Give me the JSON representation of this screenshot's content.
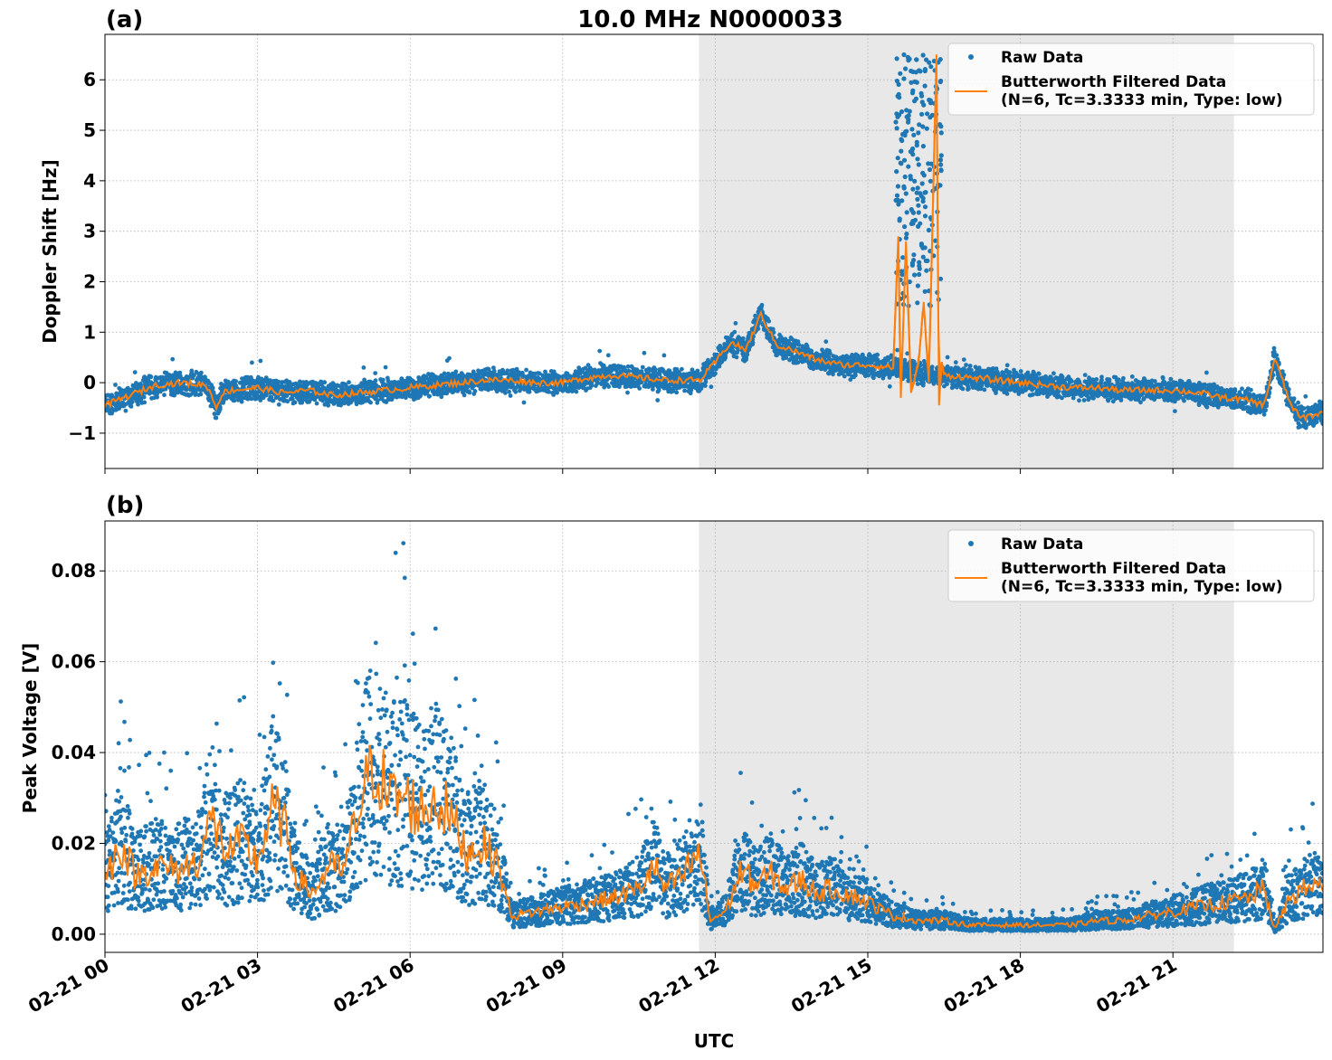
{
  "figure": {
    "title": "10.0 MHz N0000033",
    "xlabel": "UTC",
    "night_shading": {
      "start_hour": 11.68,
      "end_hour": 22.2,
      "color": "#e8e8e8"
    },
    "colors": {
      "raw": "#1f77b4",
      "filtered": "#ff7f0e"
    }
  },
  "chart_data": [
    {
      "type": "scatter",
      "panel_label": "(a)",
      "title": "10.0 MHz N0000033",
      "xlabel": "",
      "ylabel": "Doppler Shift [Hz]",
      "xlim": [
        0,
        23.95
      ],
      "ylim": [
        -1.7,
        6.9
      ],
      "x_unit": "hours UTC on 02-21",
      "xticks": [
        0,
        3,
        6,
        9,
        12,
        15,
        18,
        21
      ],
      "yticks": [
        -1,
        0,
        1,
        2,
        3,
        4,
        5,
        6
      ],
      "ytick_labels": [
        "−1",
        "0",
        "1",
        "2",
        "3",
        "4",
        "5",
        "6"
      ],
      "grid": true,
      "legend": {
        "placement": "top-right",
        "entries": [
          "Raw Data",
          "Butterworth Filtered Data",
          "(N=6, Tc=3.3333 min, Type: low)"
        ]
      },
      "series": [
        {
          "name": "Raw Data",
          "kind": "points",
          "band_halfwidth": 0.22,
          "x": [
            0,
            0.5,
            1,
            1.5,
            2,
            2.2,
            2.3,
            2.5,
            3,
            3.5,
            4,
            4.5,
            5,
            5.5,
            6,
            6.5,
            7,
            7.5,
            8,
            8.5,
            9,
            9.5,
            10,
            10.5,
            11,
            11.5,
            11.7,
            12,
            12.3,
            12.6,
            12.9,
            13.2,
            13.5,
            14,
            14.5,
            15,
            15.5,
            16,
            16.5,
            17,
            17.5,
            18,
            18.5,
            19,
            19.5,
            20,
            20.5,
            21,
            21.5,
            22,
            22.5,
            22.8,
            23,
            23.3,
            23.5,
            23.95
          ],
          "y": [
            -0.45,
            -0.25,
            -0.05,
            0.0,
            -0.05,
            -0.5,
            -0.2,
            -0.15,
            -0.1,
            -0.2,
            -0.15,
            -0.25,
            -0.2,
            -0.15,
            -0.1,
            -0.05,
            0.0,
            0.05,
            0.05,
            0.0,
            0.0,
            0.1,
            0.15,
            0.1,
            0.05,
            0.05,
            0.05,
            0.4,
            0.8,
            0.65,
            1.35,
            0.75,
            0.65,
            0.45,
            0.35,
            0.35,
            0.3,
            0.2,
            0.1,
            0.1,
            0.05,
            0.0,
            -0.05,
            -0.1,
            -0.1,
            -0.15,
            -0.15,
            -0.15,
            -0.2,
            -0.3,
            -0.35,
            -0.45,
            0.5,
            -0.4,
            -0.7,
            -0.6
          ]
        },
        {
          "name": "Butterworth Filtered Data",
          "kind": "line",
          "x": [
            0,
            0.5,
            1,
            1.5,
            2,
            2.2,
            2.3,
            2.5,
            3,
            3.5,
            4,
            4.5,
            5,
            5.5,
            6,
            6.5,
            7,
            7.5,
            8,
            8.5,
            9,
            9.5,
            10,
            10.5,
            11,
            11.5,
            11.7,
            12,
            12.3,
            12.6,
            12.9,
            13.2,
            13.5,
            14,
            14.5,
            15,
            15.5,
            15.6,
            15.65,
            15.75,
            15.85,
            16.0,
            16.1,
            16.2,
            16.35,
            16.4,
            16.45,
            16.5,
            17,
            17.5,
            18,
            18.5,
            19,
            19.5,
            20,
            20.5,
            21,
            21.5,
            22,
            22.5,
            22.8,
            23,
            23.3,
            23.5,
            23.95
          ],
          "y": [
            -0.45,
            -0.25,
            -0.05,
            0.0,
            -0.05,
            -0.5,
            -0.2,
            -0.15,
            -0.1,
            -0.2,
            -0.15,
            -0.25,
            -0.2,
            -0.15,
            -0.1,
            -0.05,
            0.0,
            0.05,
            0.05,
            0.0,
            0.0,
            0.1,
            0.15,
            0.1,
            0.05,
            0.05,
            0.05,
            0.4,
            0.8,
            0.65,
            1.35,
            0.75,
            0.65,
            0.45,
            0.35,
            0.35,
            0.3,
            2.9,
            -0.3,
            2.8,
            -0.2,
            0.4,
            1.6,
            0.0,
            6.5,
            -0.45,
            0.4,
            0.15,
            0.1,
            0.05,
            0.0,
            -0.05,
            -0.1,
            -0.1,
            -0.15,
            -0.15,
            -0.15,
            -0.2,
            -0.3,
            -0.35,
            -0.45,
            0.5,
            -0.4,
            -0.7,
            -0.6
          ]
        }
      ],
      "outliers": {
        "x_range": [
          15.55,
          16.45
        ],
        "y_range": [
          1.5,
          6.5
        ]
      }
    },
    {
      "type": "scatter",
      "panel_label": "(b)",
      "title": "",
      "xlabel": "UTC",
      "ylabel": "Peak Voltage [V]",
      "xlim": [
        0,
        23.95
      ],
      "ylim": [
        -0.004,
        0.091
      ],
      "x_unit": "hours UTC on 02-21",
      "xticks": [
        0,
        3,
        6,
        9,
        12,
        15,
        18,
        21
      ],
      "xtick_labels": [
        "02-21 00",
        "02-21 03",
        "02-21 06",
        "02-21 09",
        "02-21 12",
        "02-21 15",
        "02-21 18",
        "02-21 21"
      ],
      "yticks": [
        0.0,
        0.02,
        0.04,
        0.06,
        0.08
      ],
      "ytick_labels": [
        "0.00",
        "0.02",
        "0.04",
        "0.06",
        "0.08"
      ],
      "grid": true,
      "legend": {
        "placement": "top-right",
        "entries": [
          "Raw Data",
          "Butterworth Filtered Data",
          "(N=6, Tc=3.3333 min, Type: low)"
        ]
      },
      "series": [
        {
          "name": "Raw Data",
          "kind": "points",
          "band_scale": 0.7,
          "x": [
            0,
            0.3,
            0.6,
            1,
            1.4,
            1.8,
            2.1,
            2.4,
            2.7,
            3,
            3.3,
            3.5,
            3.8,
            4.1,
            4.4,
            4.7,
            5,
            5.3,
            5.6,
            5.9,
            6.2,
            6.5,
            6.8,
            7.1,
            7.4,
            7.7,
            8,
            8.5,
            9,
            9.5,
            10,
            10.5,
            10.8,
            11,
            11.3,
            11.7,
            11.9,
            12.2,
            12.5,
            12.8,
            13.1,
            13.4,
            13.7,
            14,
            14.3,
            14.6,
            15,
            15.5,
            16,
            16.5,
            17,
            17.5,
            18,
            18.5,
            19,
            19.5,
            20,
            20.5,
            21,
            21.5,
            22,
            22.5,
            22.8,
            23,
            23.3,
            23.6,
            23.95
          ],
          "y": [
            0.012,
            0.02,
            0.013,
            0.015,
            0.014,
            0.016,
            0.025,
            0.018,
            0.02,
            0.016,
            0.028,
            0.024,
            0.012,
            0.009,
            0.015,
            0.014,
            0.028,
            0.038,
            0.03,
            0.03,
            0.027,
            0.03,
            0.026,
            0.018,
            0.02,
            0.016,
            0.004,
            0.005,
            0.006,
            0.007,
            0.008,
            0.01,
            0.015,
            0.01,
            0.012,
            0.018,
            0.003,
            0.005,
            0.014,
            0.011,
            0.013,
            0.01,
            0.012,
            0.009,
            0.01,
            0.009,
            0.007,
            0.004,
            0.003,
            0.003,
            0.002,
            0.002,
            0.002,
            0.002,
            0.002,
            0.003,
            0.003,
            0.004,
            0.005,
            0.006,
            0.007,
            0.008,
            0.01,
            0.001,
            0.008,
            0.01,
            0.011
          ]
        },
        {
          "name": "Butterworth Filtered Data",
          "kind": "line",
          "x": [
            0,
            0.3,
            0.6,
            1,
            1.4,
            1.8,
            2.1,
            2.4,
            2.7,
            3,
            3.3,
            3.5,
            3.8,
            4.1,
            4.4,
            4.7,
            5,
            5.3,
            5.6,
            5.9,
            6.2,
            6.5,
            6.8,
            7.1,
            7.4,
            7.7,
            8,
            8.5,
            9,
            9.5,
            10,
            10.5,
            10.8,
            11,
            11.3,
            11.7,
            11.9,
            12.2,
            12.5,
            12.8,
            13.1,
            13.4,
            13.7,
            14,
            14.3,
            14.6,
            15,
            15.5,
            16,
            16.5,
            17,
            17.5,
            18,
            18.5,
            19,
            19.5,
            20,
            20.5,
            21,
            21.5,
            22,
            22.5,
            22.8,
            23,
            23.3,
            23.6,
            23.95
          ],
          "y": [
            0.012,
            0.02,
            0.013,
            0.015,
            0.014,
            0.016,
            0.025,
            0.018,
            0.02,
            0.016,
            0.028,
            0.024,
            0.012,
            0.009,
            0.015,
            0.014,
            0.028,
            0.038,
            0.03,
            0.03,
            0.027,
            0.03,
            0.026,
            0.018,
            0.02,
            0.016,
            0.004,
            0.005,
            0.006,
            0.007,
            0.008,
            0.01,
            0.015,
            0.01,
            0.012,
            0.018,
            0.003,
            0.005,
            0.014,
            0.011,
            0.013,
            0.01,
            0.012,
            0.009,
            0.01,
            0.009,
            0.007,
            0.004,
            0.003,
            0.003,
            0.002,
            0.002,
            0.002,
            0.002,
            0.002,
            0.003,
            0.003,
            0.004,
            0.005,
            0.006,
            0.007,
            0.008,
            0.01,
            0.001,
            0.008,
            0.01,
            0.011
          ]
        }
      ]
    }
  ]
}
